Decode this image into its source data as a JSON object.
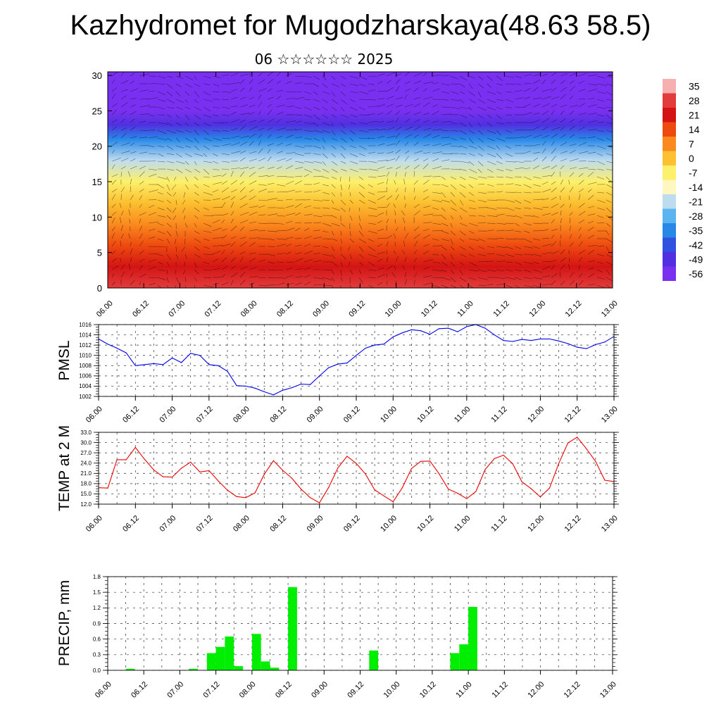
{
  "header": {
    "title": "Kazhydromet for Mugodzharskaya(48.63 58.5)",
    "subtitle": "06 ☆☆☆☆☆☆ 2025"
  },
  "chart_data": [
    {
      "type": "heatmap",
      "title": "",
      "ylabel": "",
      "xlabel": "",
      "x_ticks": [
        "06.00",
        "06.12",
        "07.00",
        "07.12",
        "08.00",
        "08.12",
        "09.00",
        "09.12",
        "10.00",
        "10.12",
        "11.00",
        "11.12",
        "12.00",
        "12.12",
        "13.00"
      ],
      "y_ticks": [
        0,
        5,
        10,
        15,
        20,
        25,
        30
      ],
      "ylim": [
        0,
        30.5
      ],
      "colorbar_labels": [
        35,
        28,
        21,
        14,
        7,
        0,
        -7,
        -14,
        -21,
        -28,
        -35,
        -42,
        -49,
        -56
      ],
      "colorbar_colors": [
        "#f6b0b0",
        "#e23c3c",
        "#d41414",
        "#ee4a10",
        "#fa8a1e",
        "#fcc030",
        "#fdf06a",
        "#fff7c0",
        "#bedcf0",
        "#5ab4f0",
        "#2888e8",
        "#3050e0",
        "#5030e0",
        "#7a30f0"
      ],
      "temperature_profile": {
        "heights": [
          0,
          3,
          6,
          9,
          12,
          15,
          18,
          21,
          23,
          25,
          27,
          29,
          30.5
        ],
        "values": [
          30,
          22,
          14,
          8,
          2,
          -8,
          -22,
          -38,
          -50,
          -56,
          -58,
          -62,
          -64
        ]
      },
      "overlay": "wind vectors (streamlines)",
      "grid": false
    },
    {
      "type": "line",
      "ylabel": "PMSL",
      "ylim": [
        1002,
        1016
      ],
      "y_ticks": [
        1002,
        1004,
        1006,
        1008,
        1010,
        1012,
        1014,
        1016
      ],
      "x_ticks": [
        "06.00",
        "06.12",
        "07.00",
        "07.12",
        "08.00",
        "08.12",
        "09.00",
        "09.12",
        "10.00",
        "10.12",
        "11.00",
        "11.12",
        "12.00",
        "12.12",
        "13.00"
      ],
      "color": "#0000ee",
      "grid": true,
      "x": [
        0,
        1,
        2,
        3,
        4,
        5,
        6,
        7,
        8,
        9,
        10,
        11,
        12,
        13,
        14,
        15,
        16,
        17,
        18,
        19,
        20,
        21,
        22,
        23,
        24,
        25,
        26,
        27,
        28,
        29,
        30,
        31,
        32,
        33,
        34,
        35,
        36,
        37,
        38,
        39,
        40,
        41,
        42,
        43,
        44,
        45,
        46,
        47,
        48,
        49,
        50,
        51,
        52,
        53,
        54,
        55,
        56
      ],
      "values": [
        1013.2,
        1012.2,
        1011.4,
        1010.5,
        1008.0,
        1008.2,
        1008.4,
        1008.2,
        1009.5,
        1008.6,
        1010.4,
        1010.0,
        1008.2,
        1008.0,
        1006.9,
        1004.1,
        1004.0,
        1003.6,
        1002.9,
        1002.3,
        1003.2,
        1003.7,
        1004.4,
        1004.3,
        1006.0,
        1007.6,
        1008.3,
        1008.5,
        1010.0,
        1011.4,
        1012.0,
        1012.2,
        1013.6,
        1014.4,
        1015.0,
        1014.8,
        1014.1,
        1015.2,
        1015.3,
        1014.6,
        1015.6,
        1016.0,
        1015.3,
        1014.0,
        1012.9,
        1012.7,
        1013.1,
        1012.9,
        1013.2,
        1013.2,
        1012.8,
        1012.3,
        1011.6,
        1011.3,
        1012.1,
        1012.6,
        1013.7
      ]
    },
    {
      "type": "line",
      "ylabel": "TEMP at 2 M",
      "ylim": [
        12.0,
        33.0
      ],
      "y_ticks": [
        "12.0",
        "15.0",
        "18.0",
        "21.0",
        "24.0",
        "27.0",
        "30.0",
        "33.0"
      ],
      "x_ticks": [
        "06.00",
        "06.12",
        "07.00",
        "07.12",
        "08.00",
        "08.12",
        "09.00",
        "09.12",
        "10.00",
        "10.12",
        "11.00",
        "11.12",
        "12.00",
        "12.12",
        "13.00"
      ],
      "color": "#ee0000",
      "grid": true,
      "x": [
        0,
        1,
        2,
        3,
        4,
        5,
        6,
        7,
        8,
        9,
        10,
        11,
        12,
        13,
        14,
        15,
        16,
        17,
        18,
        19,
        20,
        21,
        22,
        23,
        24,
        25,
        26,
        27,
        28,
        29,
        30,
        31,
        32,
        33,
        34,
        35,
        36,
        37,
        38,
        39,
        40,
        41,
        42,
        43,
        44,
        45,
        46,
        47,
        48,
        49,
        50,
        51,
        52,
        53,
        54,
        55,
        56
      ],
      "values": [
        16.8,
        16.7,
        25.0,
        25.0,
        28.6,
        25.1,
        22.0,
        20.0,
        19.9,
        22.5,
        24.3,
        21.4,
        21.8,
        18.8,
        16.1,
        14.2,
        13.9,
        15.3,
        20.7,
        24.7,
        21.9,
        19.6,
        16.4,
        13.9,
        12.4,
        16.9,
        22.6,
        26.0,
        23.9,
        20.8,
        16.2,
        14.4,
        12.7,
        16.8,
        22.4,
        24.5,
        24.6,
        20.9,
        16.4,
        15.2,
        13.6,
        15.7,
        22.1,
        25.3,
        26.3,
        23.8,
        18.5,
        16.5,
        14.1,
        16.7,
        23.9,
        29.9,
        31.6,
        28.2,
        24.5,
        19.0,
        18.6
      ]
    },
    {
      "type": "bar",
      "ylabel": "PRECIP, mm",
      "ylim": [
        0.0,
        1.8
      ],
      "y_ticks": [
        "0.0",
        "0.3",
        "0.6",
        "0.9",
        "1.2",
        "1.5",
        "1.8"
      ],
      "x_ticks": [
        "06.00",
        "06.12",
        "07.00",
        "07.12",
        "08.00",
        "08.12",
        "09.00",
        "09.12",
        "10.00",
        "10.12",
        "11.00",
        "11.12",
        "12.00",
        "12.12",
        "13.00"
      ],
      "color": "#00ee00",
      "grid": true,
      "x": [
        0,
        1,
        2,
        3,
        4,
        5,
        6,
        7,
        8,
        9,
        10,
        11,
        12,
        13,
        14,
        15,
        16,
        17,
        18,
        19,
        20,
        21,
        22,
        23,
        24,
        25,
        26,
        27,
        28,
        29,
        30,
        31,
        32,
        33,
        34,
        35,
        36,
        37,
        38,
        39,
        40,
        41,
        42,
        43,
        44,
        45,
        46,
        47,
        48,
        49,
        50,
        51,
        52,
        53,
        54,
        55,
        56
      ],
      "values": [
        0,
        0,
        0.03,
        0,
        0,
        0,
        0,
        0,
        0,
        0.03,
        0,
        0.33,
        0.45,
        0.65,
        0.08,
        0,
        0.7,
        0.17,
        0.05,
        0,
        1.6,
        0,
        0,
        0,
        0,
        0,
        0,
        0,
        0,
        0.38,
        0,
        0,
        0,
        0,
        0,
        0,
        0,
        0,
        0.33,
        0.5,
        1.22,
        0,
        0,
        0,
        0,
        0,
        0,
        0,
        0,
        0,
        0,
        0,
        0,
        0,
        0,
        0,
        0
      ]
    }
  ]
}
